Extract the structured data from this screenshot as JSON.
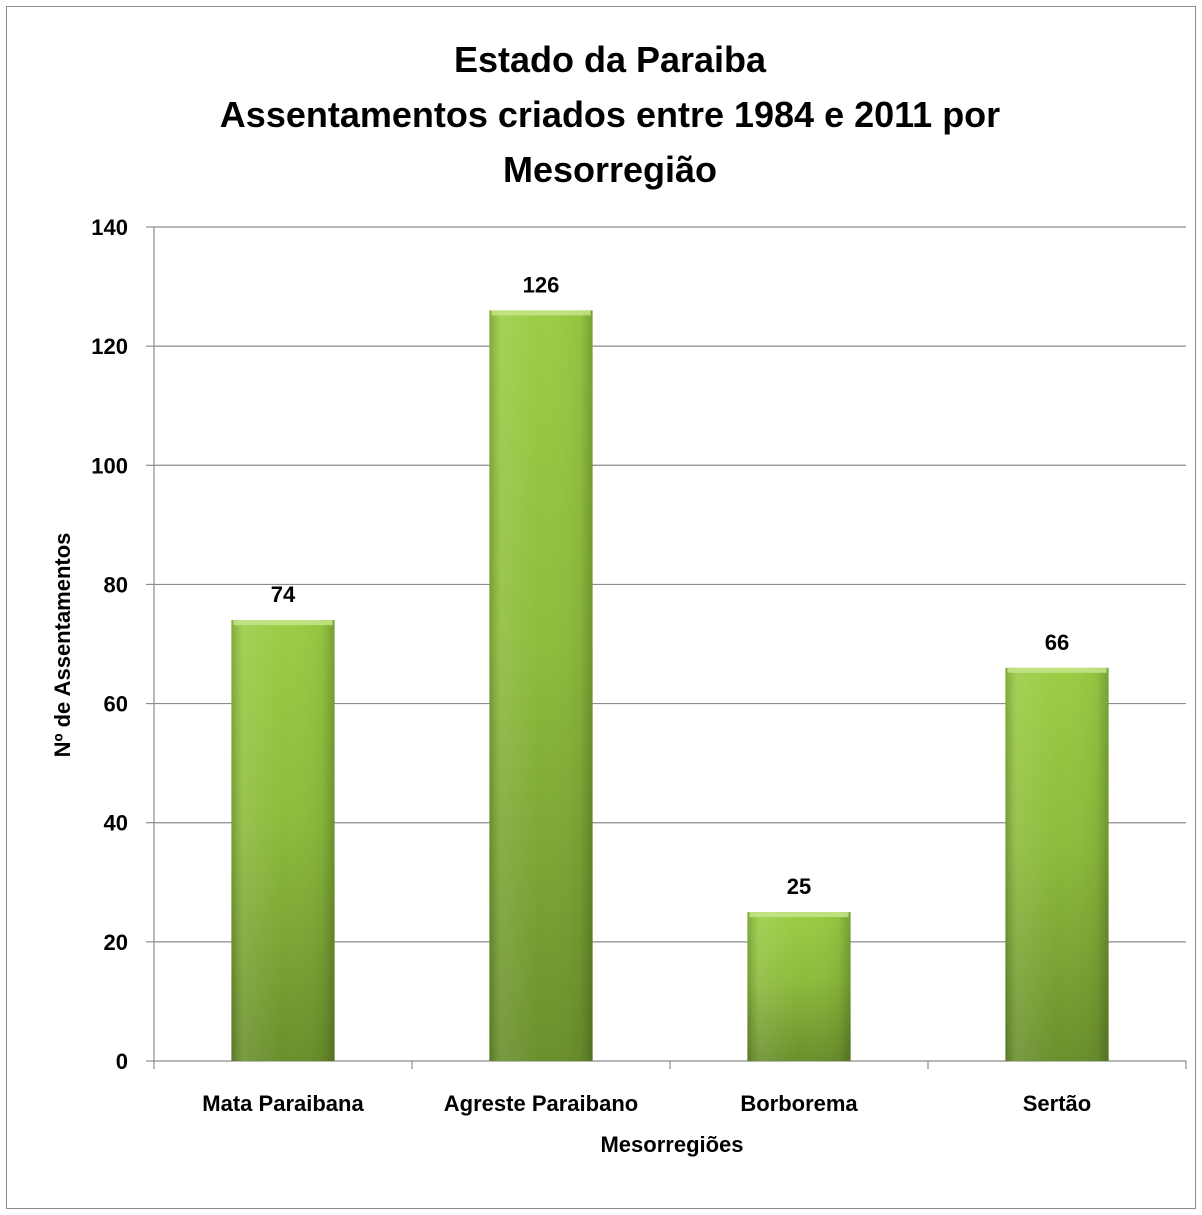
{
  "chart_data": {
    "type": "bar",
    "title": [
      "Estado da Paraiba",
      "Assentamentos criados entre 1984 e 2011 por",
      "Mesorregião"
    ],
    "xlabel": "Mesorregiões",
    "ylabel": "Nº de Assentamentos",
    "categories": [
      "Mata Paraibana",
      "Agreste Paraibano",
      "Borborema",
      "Sertão"
    ],
    "values": [
      74,
      126,
      25,
      66
    ],
    "data_labels": [
      "74",
      "126",
      "25",
      "66"
    ],
    "ylim": [
      0,
      140
    ],
    "yticks": [
      0,
      20,
      40,
      60,
      80,
      100,
      120,
      140
    ],
    "grid": true,
    "legend": "none",
    "colors": {
      "bar_top": "#9acd44",
      "bar_mid": "#8cbc3c",
      "bar_bottom": "#6a8f2c",
      "gridline": "#8c8c8c",
      "axis": "#8c8c8c"
    }
  }
}
